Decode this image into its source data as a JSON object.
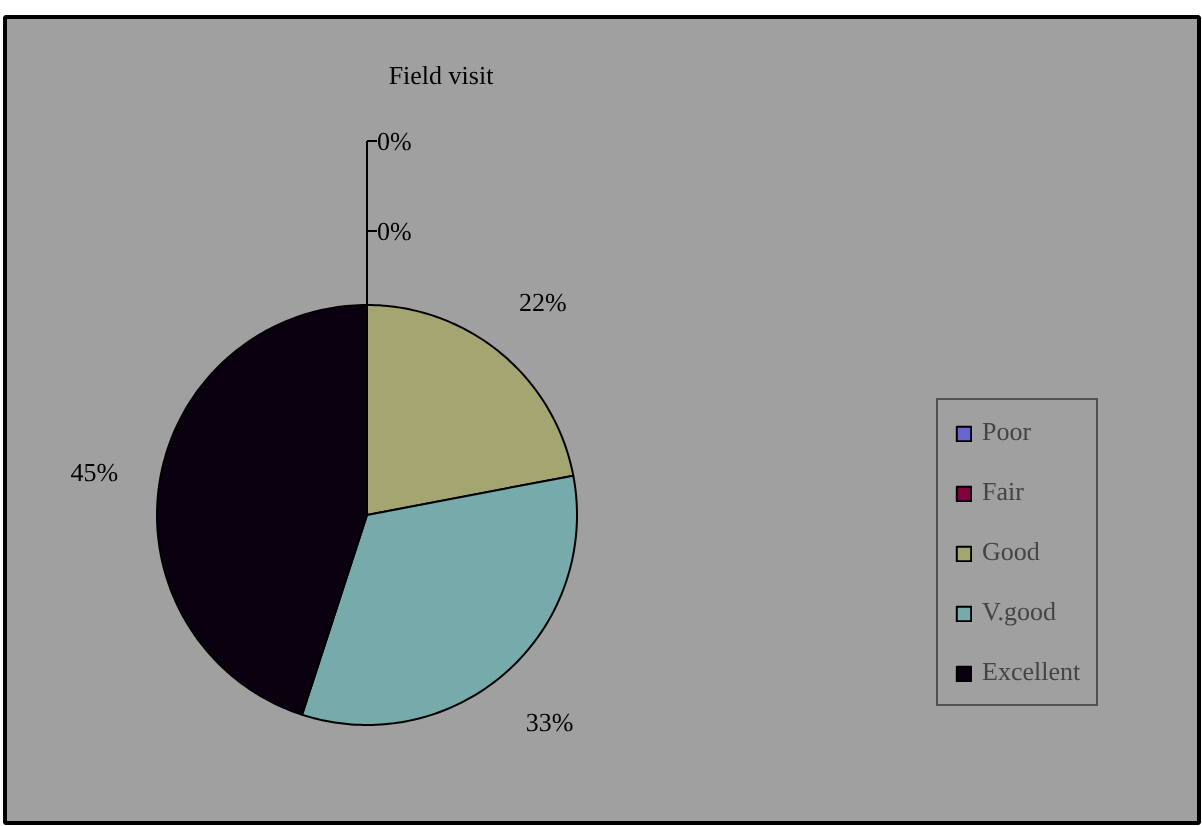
{
  "chart_data": {
    "type": "pie",
    "title": "Field visit",
    "categories": [
      "Poor",
      "Fair",
      "Good",
      "V.good",
      "Excellent"
    ],
    "values": [
      0,
      0,
      22,
      33,
      45
    ],
    "colors": [
      "#6666cc",
      "#800040",
      "#a5a572",
      "#77aaaa",
      "#0a0010"
    ],
    "value_labels": [
      "0%",
      "0%",
      "22%",
      "33%",
      "45%"
    ],
    "legend": "right"
  }
}
